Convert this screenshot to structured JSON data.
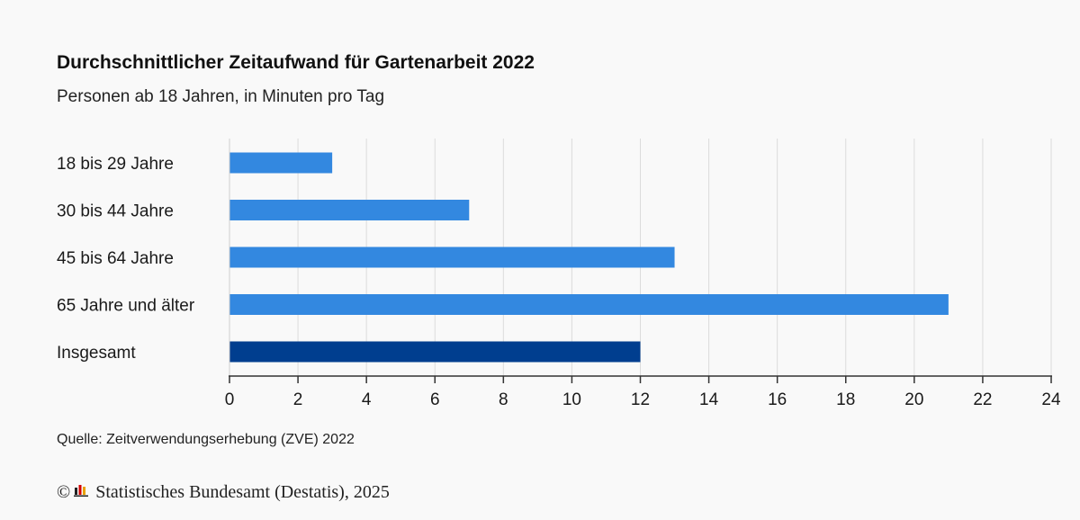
{
  "header": {
    "title": "Durchschnittlicher Zeitaufwand für Gartenarbeit 2022",
    "subtitle": "Personen ab 18 Jahren, in Minuten pro Tag"
  },
  "chart_data": {
    "type": "bar",
    "orientation": "horizontal",
    "title": "Durchschnittlicher Zeitaufwand für Gartenarbeit 2022",
    "subtitle": "Personen ab 18 Jahren, in Minuten pro Tag",
    "categories": [
      "18 bis 29 Jahre",
      "30 bis 44 Jahre",
      "45 bis 64 Jahre",
      "65 Jahre und älter",
      "Insgesamt"
    ],
    "values": [
      3,
      7,
      13,
      21,
      12
    ],
    "xlim": [
      0,
      24
    ],
    "xticks": [
      0,
      2,
      4,
      6,
      8,
      10,
      12,
      14,
      16,
      18,
      20,
      22,
      24
    ],
    "grid": "vertical",
    "colors": {
      "default": "#3388e0",
      "highlight": "#003e8f"
    },
    "highlight_category": "Insgesamt"
  },
  "footer": {
    "source": "Quelle: Zeitverwendungserhebung (ZVE) 2022",
    "copyright_symbol": "©",
    "publisher": "Statistisches Bundesamt (Destatis), 2025",
    "logo_icon": "destatis-logo-icon"
  }
}
